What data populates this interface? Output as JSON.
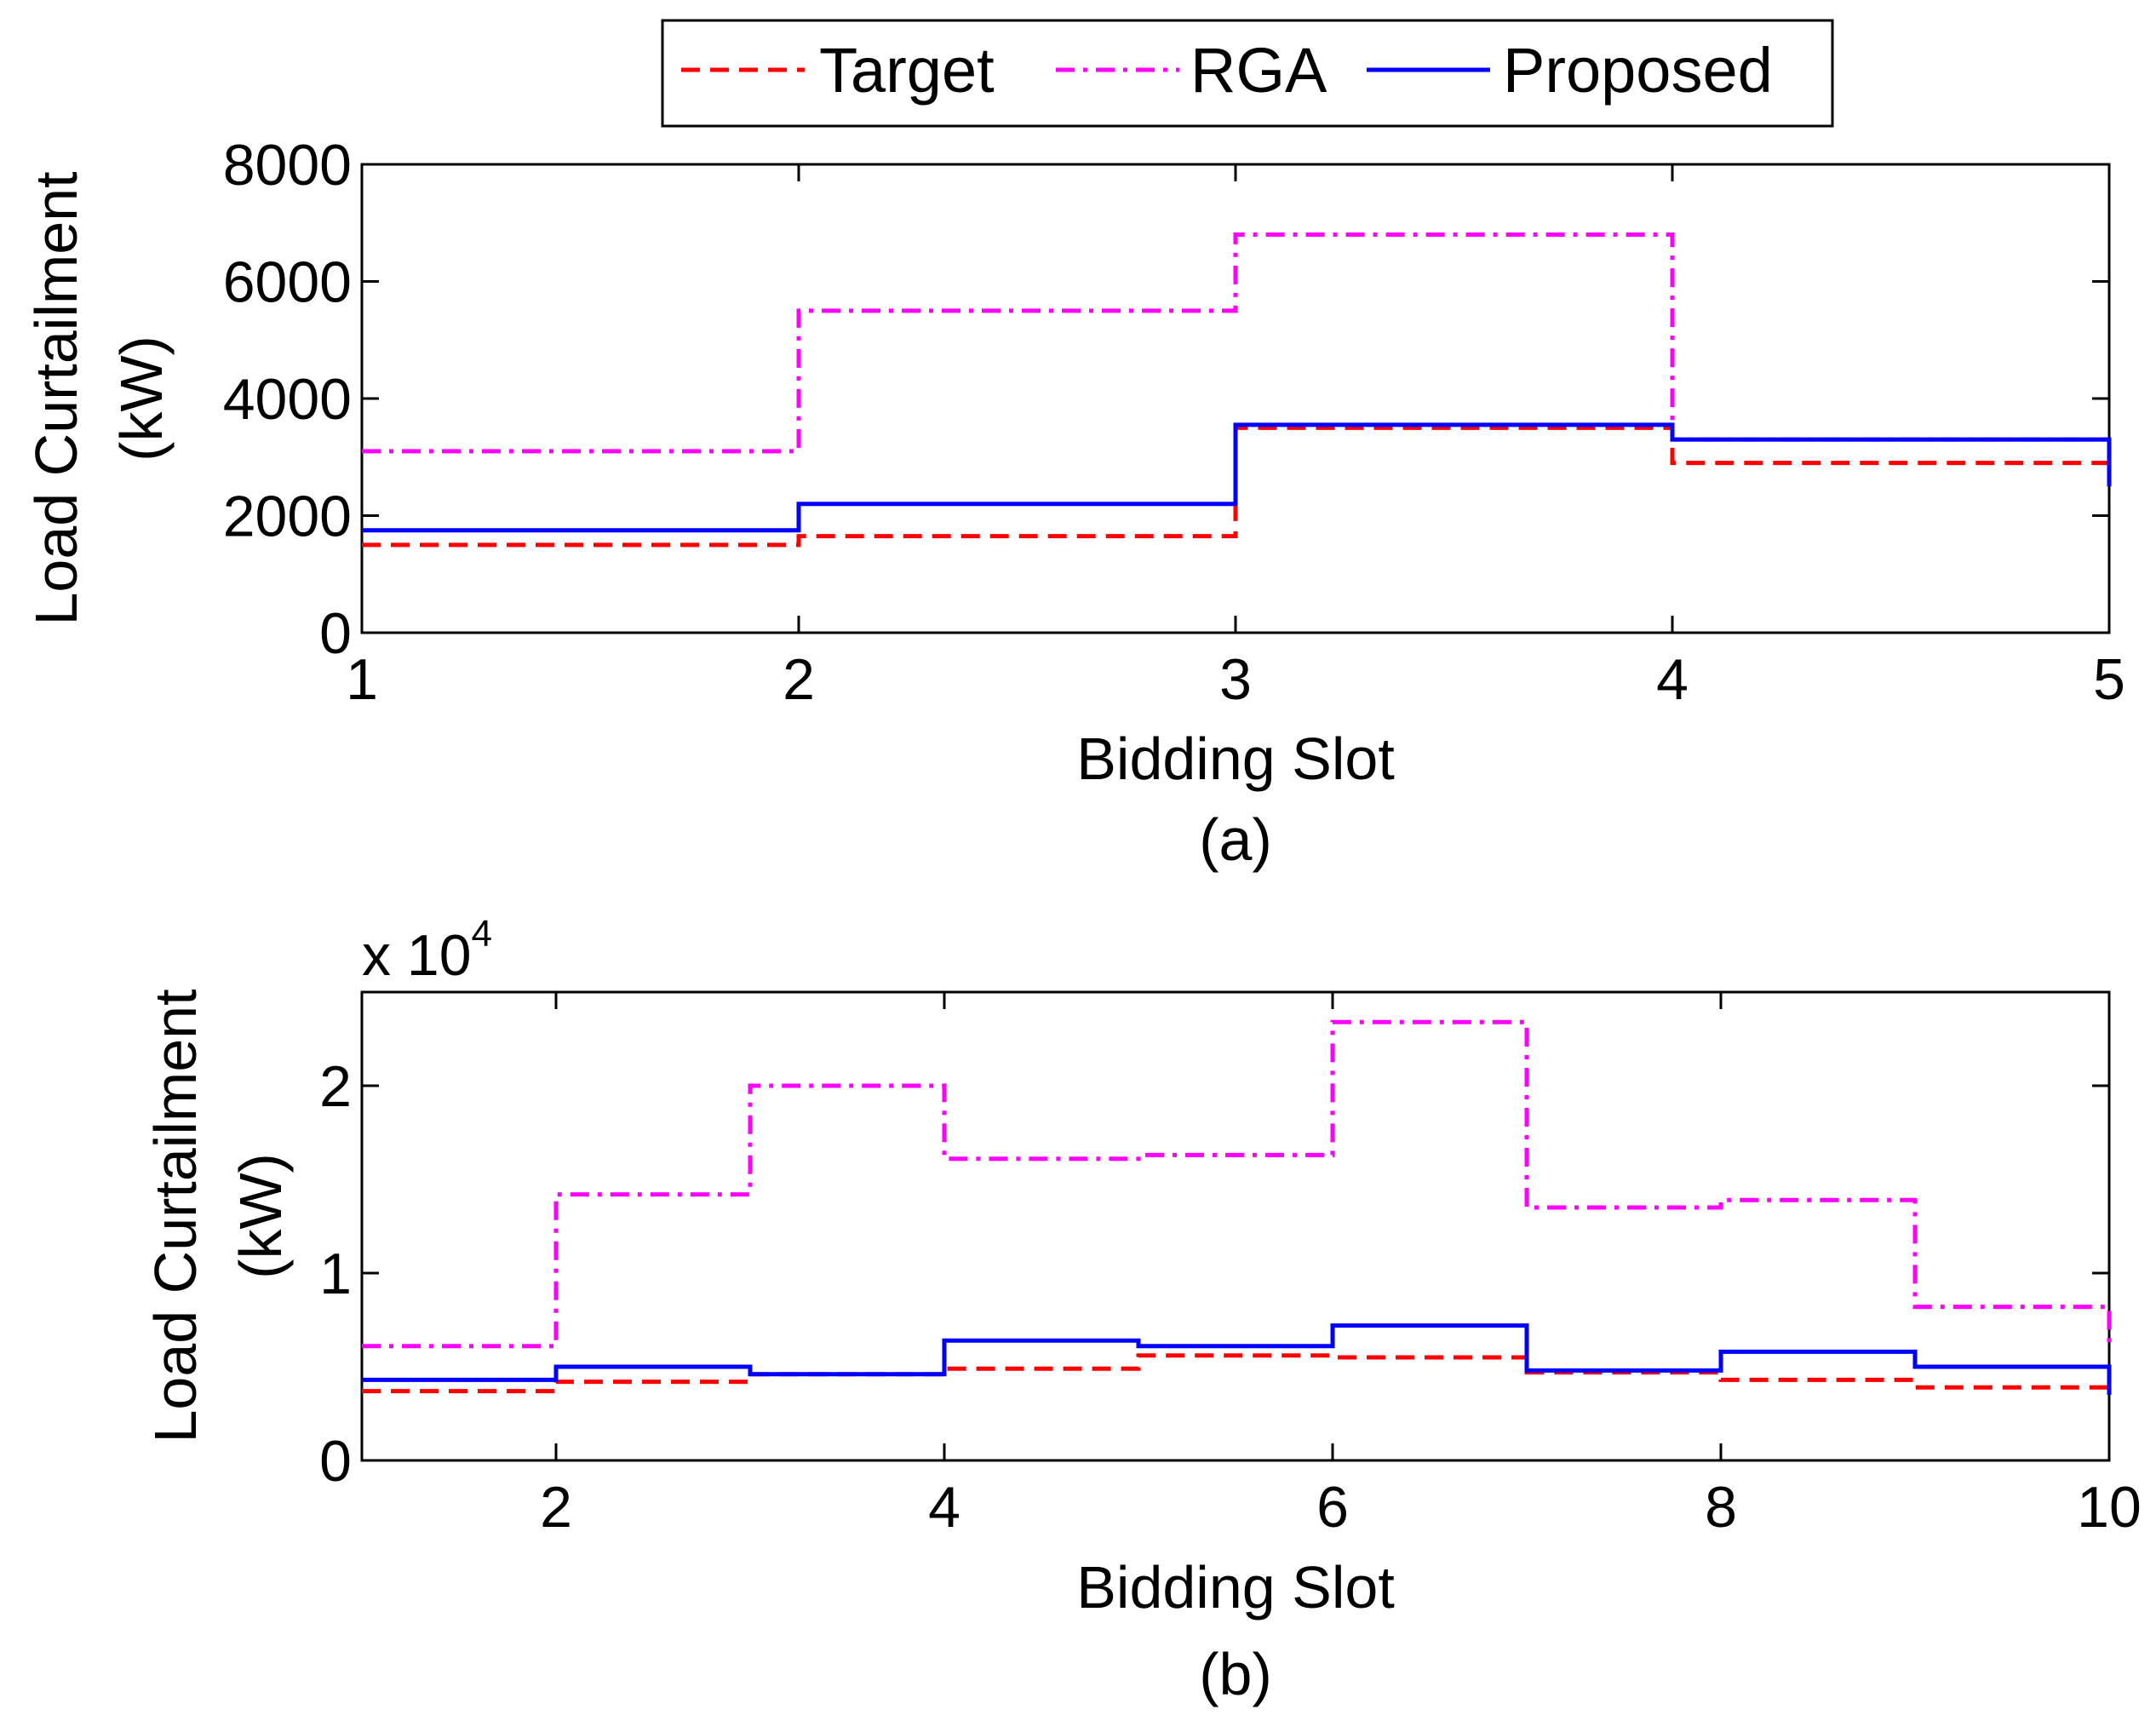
{
  "legend": {
    "items": [
      {
        "name": "Target",
        "color": "#ff0000",
        "style": "dashed"
      },
      {
        "name": "RGA",
        "color": "#ff00ff",
        "style": "dashdot"
      },
      {
        "name": "Proposed",
        "color": "#0000ff",
        "style": "solid"
      }
    ]
  },
  "chart_data": [
    {
      "type": "line",
      "panel_label": "(a)",
      "xlabel": "Bidding Slot",
      "ylabel_line1": "Load Curtailment",
      "ylabel_line2": "(kW)",
      "xlim": [
        1,
        5
      ],
      "ylim": [
        0,
        8000
      ],
      "xticks": [
        1,
        2,
        3,
        4,
        5
      ],
      "yticks": [
        0,
        2000,
        4000,
        6000,
        8000
      ],
      "ytick_labels": [
        "0",
        "2000",
        "4000",
        "6000",
        "8000"
      ],
      "xtick_labels": [
        "1",
        "2",
        "3",
        "4",
        "5"
      ],
      "step": true,
      "series": [
        {
          "name": "Target",
          "values": [
            1500,
            1650,
            3500,
            2900,
            2500
          ]
        },
        {
          "name": "RGA",
          "values": [
            3100,
            5500,
            6800,
            3300,
            2700
          ]
        },
        {
          "name": "Proposed",
          "values": [
            1750,
            2200,
            3550,
            3300,
            2500
          ]
        }
      ]
    },
    {
      "type": "line",
      "panel_label": "(b)",
      "xlabel": "Bidding Slot",
      "ylabel_line1": "Load Curtailment",
      "ylabel_line2": "(kW)",
      "multiplier_base": "x 10",
      "multiplier_exp": "4",
      "xlim": [
        1,
        10
      ],
      "ylim": [
        0,
        25000
      ],
      "xticks": [
        2,
        4,
        6,
        8,
        10
      ],
      "xtick_labels": [
        "2",
        "4",
        "6",
        "8",
        "10"
      ],
      "yticks": [
        0,
        10000,
        20000
      ],
      "ytick_labels": [
        "0",
        "1",
        "2"
      ],
      "step": true,
      "series": [
        {
          "name": "Target",
          "values": [
            3700,
            4200,
            4600,
            4900,
            5600,
            5500,
            4700,
            4300,
            3900,
            3500
          ]
        },
        {
          "name": "RGA",
          "values": [
            6100,
            14200,
            20000,
            16100,
            16300,
            23400,
            13500,
            13900,
            8200,
            6000
          ]
        },
        {
          "name": "Proposed",
          "values": [
            4300,
            5000,
            4600,
            6400,
            6100,
            7200,
            4800,
            5800,
            5000,
            3500
          ]
        }
      ]
    }
  ]
}
